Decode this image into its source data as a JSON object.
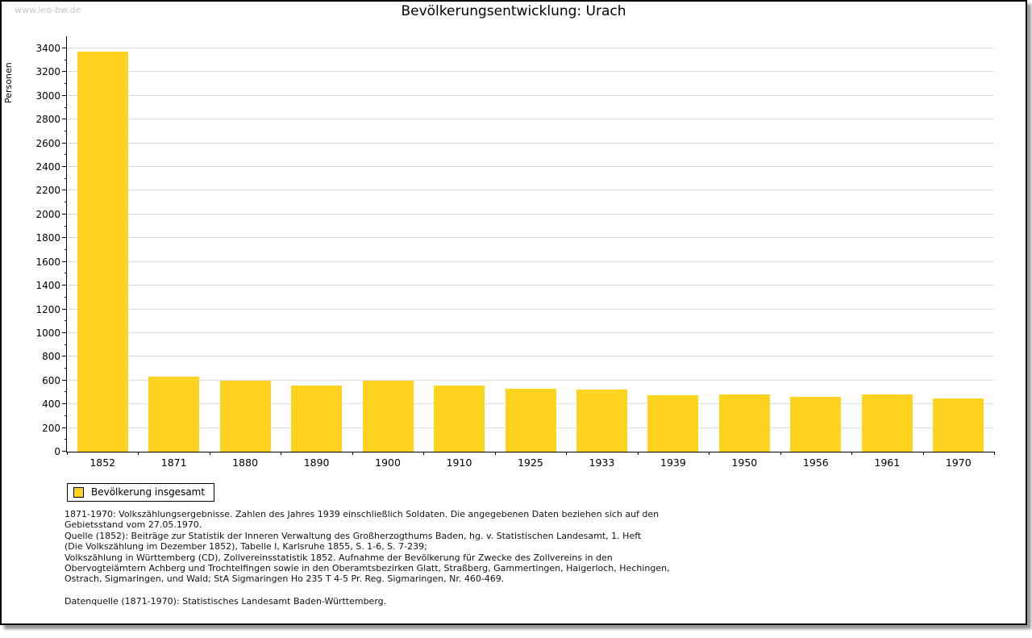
{
  "page": {
    "watermark": "www.leo-bw.de",
    "title": "Bevölkerungsentwicklung: Urach"
  },
  "chart_data": {
    "type": "bar",
    "title": "Bevölkerungsentwicklung: Urach",
    "xlabel": "",
    "ylabel": "Personen",
    "ylim": [
      0,
      3400
    ],
    "ytick_step": 200,
    "yminor_step": 100,
    "grid": true,
    "bar_color": "#FFD320",
    "legend": {
      "label": "Bevölkerung insgesamt",
      "position": "bottom-left"
    },
    "categories": [
      "1852",
      "1871",
      "1880",
      "1890",
      "1900",
      "1910",
      "1925",
      "1933",
      "1939",
      "1950",
      "1956",
      "1961",
      "1970"
    ],
    "values": [
      3375,
      635,
      600,
      560,
      600,
      560,
      530,
      525,
      475,
      480,
      460,
      480,
      450
    ]
  },
  "footnotes": {
    "lines": [
      "1871-1970: Volkszählungsergebnisse. Zahlen des Jahres 1939 einschließlich Soldaten. Die angegebenen Daten beziehen sich auf den",
      "Gebietsstand vom 27.05.1970.",
      "Quelle (1852): Beiträge zur Statistik der Inneren Verwaltung des Großherzogthums Baden, hg. v. Statistischen Landesamt, 1. Heft",
      "(Die Volkszählung im Dezember 1852), Tabelle I, Karlsruhe 1855, S. 1-6, S. 7-239;",
      "Volkszählung in Württemberg (CD), Zollvereinsstatistik 1852. Aufnahme der Bevölkerung für Zwecke des Zollvereins in den",
      "Obervogteiämtern Achberg und Trochtelfingen sowie in den Oberamtsbezirken Glatt, Straßberg, Gammertingen, Haigerloch, Hechingen,",
      "Ostrach, Sigmaringen, und Wald; StA Sigmaringen Ho 235 T 4-5 Pr. Reg. Sigmaringen, Nr. 460-469."
    ],
    "datasource": "Datenquelle (1871-1970): Statistisches Landesamt Baden-Württemberg."
  }
}
